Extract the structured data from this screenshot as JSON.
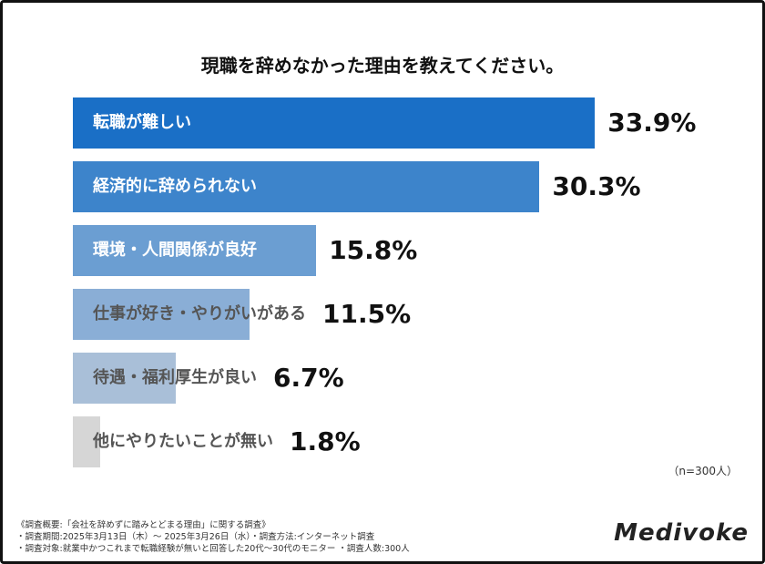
{
  "chart_data": {
    "type": "bar",
    "orientation": "horizontal",
    "title": "現職を辞めなかった理由を教えてください。",
    "categories": [
      "転職が難しい",
      "経済的に辞められない",
      "環境・人間関係が良好",
      "仕事が好き・やりがいがある",
      "待遇・福利厚生が良い",
      "他にやりたいことが無い"
    ],
    "values": [
      33.9,
      30.3,
      15.8,
      11.5,
      6.7,
      1.8
    ],
    "value_labels": [
      "33.9%",
      "30.3%",
      "15.8%",
      "11.5%",
      "6.7%",
      "1.8%"
    ],
    "colors": [
      "#1a6fc6",
      "#3d84cb",
      "#6b9ed2",
      "#8aaed6",
      "#a9bfd8",
      "#d6d6d6"
    ],
    "label_colors": [
      "#ffffff",
      "#ffffff",
      "#ffffff",
      "#555555",
      "#555555",
      "#555555"
    ],
    "grid": false
  },
  "sample_note": "（n=300人）",
  "footnotes": [
    "《調査概要:「会社を辞めずに踏みとどまる理由」に関する調査》",
    "・調査期間:2025年3月13日（木）～ 2025年3月26日（水）・調査方法:インターネット調査",
    "・調査対象:就業中かつこれまで転職経験が無いと回答した20代～30代のモニター ・調査人数:300人"
  ],
  "logo": "Medivoke"
}
